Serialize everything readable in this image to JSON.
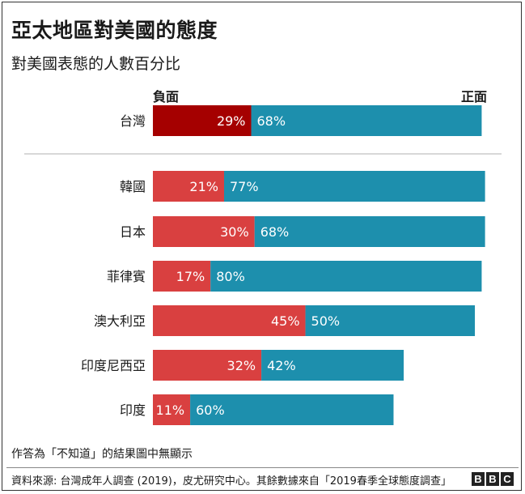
{
  "title": "亞太地區對美國的態度",
  "subtitle": "對美國表態的人數百分比",
  "legend": {
    "negative": "負面",
    "positive": "正面"
  },
  "note": "作答為「不知道」的結果圖中無顯示",
  "source": "資料來源: 台灣成年人調查 (2019)，皮尤研究中心。其餘數據來自「2019春季全球態度調查」",
  "brand": [
    "B",
    "B",
    "C"
  ],
  "colors": {
    "taiwan_negative": "#a50000",
    "negative": "#d94040",
    "positive": "#1d8fad",
    "divider": "#b0b0b0"
  },
  "chart_data": {
    "type": "bar",
    "orientation": "horizontal",
    "stacked": true,
    "categories": [
      "台灣",
      "韓國",
      "日本",
      "菲律賓",
      "澳大利亞",
      "印度尼西亞",
      "印度"
    ],
    "series": [
      {
        "name": "負面",
        "values": [
          29,
          21,
          30,
          17,
          45,
          32,
          11
        ]
      },
      {
        "name": "正面",
        "values": [
          68,
          77,
          68,
          80,
          50,
          42,
          60
        ]
      }
    ],
    "labels": {
      "negative": [
        "29%",
        "21%",
        "30%",
        "17%",
        "45%",
        "32%",
        "11%"
      ],
      "positive": [
        "68%",
        "77%",
        "68%",
        "80%",
        "50%",
        "42%",
        "60%"
      ]
    },
    "xlim": [
      0,
      100
    ],
    "grid": false,
    "legend_position": "top"
  }
}
